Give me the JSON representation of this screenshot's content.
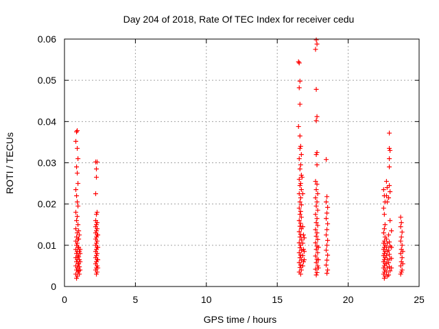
{
  "chart_data": {
    "type": "scatter",
    "title": "Day 204 of 2018, Rate Of TEC Index for receiver cedu",
    "xlabel": "GPS time / hours",
    "ylabel": "ROTI / TECUs",
    "xlim": [
      0,
      25
    ],
    "ylim": [
      0,
      0.06
    ],
    "xticks": [
      0,
      5,
      10,
      15,
      20,
      25
    ],
    "xtick_labels": [
      "0",
      "5",
      "10",
      "15",
      "20",
      "25"
    ],
    "yticks": [
      0,
      0.01,
      0.02,
      0.03,
      0.04,
      0.05,
      0.06
    ],
    "ytick_labels": [
      "0",
      "0.01",
      "0.02",
      "0.03",
      "0.04",
      "0.05",
      "0.06"
    ],
    "grid": true,
    "marker": "plus",
    "color": "#ff0000",
    "series": [
      {
        "name": "ROTI",
        "points": [
          [
            0.8,
            0.0352
          ],
          [
            0.85,
            0.0375
          ],
          [
            0.9,
            0.0378
          ],
          [
            0.9,
            0.0335
          ],
          [
            0.95,
            0.031
          ],
          [
            0.85,
            0.029
          ],
          [
            0.9,
            0.0275
          ],
          [
            0.95,
            0.025
          ],
          [
            0.8,
            0.0235
          ],
          [
            0.85,
            0.022
          ],
          [
            0.9,
            0.0205
          ],
          [
            0.95,
            0.0195
          ],
          [
            0.8,
            0.018
          ],
          [
            0.9,
            0.017
          ],
          [
            0.85,
            0.016
          ],
          [
            0.95,
            0.015
          ],
          [
            0.8,
            0.014
          ],
          [
            0.9,
            0.013
          ],
          [
            0.85,
            0.012
          ],
          [
            0.95,
            0.0115
          ],
          [
            0.8,
            0.011
          ],
          [
            0.9,
            0.0105
          ],
          [
            0.85,
            0.01
          ],
          [
            0.95,
            0.0095
          ],
          [
            0.8,
            0.009
          ],
          [
            0.9,
            0.0085
          ],
          [
            0.85,
            0.008
          ],
          [
            0.95,
            0.0075
          ],
          [
            0.8,
            0.007
          ],
          [
            0.9,
            0.0065
          ],
          [
            0.85,
            0.006
          ],
          [
            0.95,
            0.0055
          ],
          [
            0.8,
            0.005
          ],
          [
            0.9,
            0.0045
          ],
          [
            0.85,
            0.004
          ],
          [
            0.95,
            0.0035
          ],
          [
            0.8,
            0.003
          ],
          [
            0.9,
            0.0025
          ],
          [
            0.85,
            0.002
          ],
          [
            1.0,
            0.0095
          ],
          [
            1.05,
            0.0085
          ],
          [
            1.0,
            0.0072
          ],
          [
            1.05,
            0.0065
          ],
          [
            1.0,
            0.0055
          ],
          [
            1.05,
            0.0048
          ],
          [
            1.0,
            0.0038
          ],
          [
            1.05,
            0.003
          ],
          [
            1.1,
            0.009
          ],
          [
            1.1,
            0.006
          ],
          [
            1.1,
            0.004
          ],
          [
            1.1,
            0.008
          ],
          [
            1.0,
            0.0115
          ],
          [
            1.05,
            0.0125
          ],
          [
            1.0,
            0.0135
          ],
          [
            2.2,
            0.0302
          ],
          [
            2.25,
            0.0285
          ],
          [
            2.3,
            0.0302
          ],
          [
            2.25,
            0.0265
          ],
          [
            2.2,
            0.0225
          ],
          [
            2.3,
            0.018
          ],
          [
            2.25,
            0.0175
          ],
          [
            2.2,
            0.016
          ],
          [
            2.3,
            0.0155
          ],
          [
            2.25,
            0.015
          ],
          [
            2.2,
            0.0145
          ],
          [
            2.3,
            0.014
          ],
          [
            2.25,
            0.0135
          ],
          [
            2.2,
            0.013
          ],
          [
            2.3,
            0.0125
          ],
          [
            2.25,
            0.012
          ],
          [
            2.2,
            0.0115
          ],
          [
            2.3,
            0.011
          ],
          [
            2.25,
            0.0105
          ],
          [
            2.2,
            0.01
          ],
          [
            2.3,
            0.0095
          ],
          [
            2.25,
            0.009
          ],
          [
            2.2,
            0.0085
          ],
          [
            2.3,
            0.008
          ],
          [
            2.25,
            0.0075
          ],
          [
            2.2,
            0.007
          ],
          [
            2.3,
            0.0065
          ],
          [
            2.25,
            0.006
          ],
          [
            2.2,
            0.0055
          ],
          [
            2.3,
            0.005
          ],
          [
            2.25,
            0.0045
          ],
          [
            2.2,
            0.004
          ],
          [
            2.3,
            0.0035
          ],
          [
            2.25,
            0.003
          ],
          [
            2.35,
            0.0125
          ],
          [
            2.35,
            0.0095
          ],
          [
            2.35,
            0.0065
          ],
          [
            2.35,
            0.0045
          ],
          [
            16.5,
            0.0545
          ],
          [
            16.55,
            0.0542
          ],
          [
            16.6,
            0.0498
          ],
          [
            16.55,
            0.0482
          ],
          [
            16.6,
            0.0442
          ],
          [
            16.5,
            0.0388
          ],
          [
            16.6,
            0.0365
          ],
          [
            16.65,
            0.034
          ],
          [
            16.6,
            0.0335
          ],
          [
            16.7,
            0.032
          ],
          [
            16.55,
            0.031
          ],
          [
            16.65,
            0.0295
          ],
          [
            16.6,
            0.0285
          ],
          [
            16.7,
            0.027
          ],
          [
            16.55,
            0.026
          ],
          [
            16.65,
            0.025
          ],
          [
            16.6,
            0.0245
          ],
          [
            16.7,
            0.0235
          ],
          [
            16.55,
            0.0225
          ],
          [
            16.65,
            0.0215
          ],
          [
            16.6,
            0.0205
          ],
          [
            16.7,
            0.0198
          ],
          [
            16.55,
            0.019
          ],
          [
            16.65,
            0.0182
          ],
          [
            16.6,
            0.0175
          ],
          [
            16.7,
            0.0168
          ],
          [
            16.55,
            0.016
          ],
          [
            16.65,
            0.0153
          ],
          [
            16.6,
            0.0146
          ],
          [
            16.7,
            0.014
          ],
          [
            16.55,
            0.0133
          ],
          [
            16.65,
            0.0126
          ],
          [
            16.6,
            0.012
          ],
          [
            16.7,
            0.0113
          ],
          [
            16.55,
            0.0106
          ],
          [
            16.65,
            0.01
          ],
          [
            16.6,
            0.0094
          ],
          [
            16.7,
            0.0088
          ],
          [
            16.55,
            0.0082
          ],
          [
            16.65,
            0.0076
          ],
          [
            16.6,
            0.007
          ],
          [
            16.7,
            0.0064
          ],
          [
            16.55,
            0.0058
          ],
          [
            16.65,
            0.0052
          ],
          [
            16.6,
            0.0046
          ],
          [
            16.7,
            0.004
          ],
          [
            16.55,
            0.0035
          ],
          [
            16.65,
            0.003
          ],
          [
            16.8,
            0.0145
          ],
          [
            16.85,
            0.0125
          ],
          [
            16.8,
            0.0105
          ],
          [
            16.85,
            0.009
          ],
          [
            16.8,
            0.0075
          ],
          [
            16.85,
            0.006
          ],
          [
            16.8,
            0.005
          ],
          [
            16.9,
            0.0118
          ],
          [
            16.9,
            0.0085
          ],
          [
            16.9,
            0.0065
          ],
          [
            16.75,
            0.0265
          ],
          [
            16.8,
            0.0225
          ],
          [
            17.75,
            0.0598
          ],
          [
            17.8,
            0.0588
          ],
          [
            17.7,
            0.0575
          ],
          [
            17.75,
            0.0478
          ],
          [
            17.8,
            0.0412
          ],
          [
            17.75,
            0.0402
          ],
          [
            17.8,
            0.0325
          ],
          [
            17.75,
            0.032
          ],
          [
            17.8,
            0.0295
          ],
          [
            17.7,
            0.0255
          ],
          [
            17.8,
            0.0248
          ],
          [
            17.75,
            0.0235
          ],
          [
            17.85,
            0.0225
          ],
          [
            17.7,
            0.0215
          ],
          [
            17.8,
            0.0205
          ],
          [
            17.75,
            0.0195
          ],
          [
            17.85,
            0.0185
          ],
          [
            17.7,
            0.0175
          ],
          [
            17.8,
            0.0165
          ],
          [
            17.75,
            0.0155
          ],
          [
            17.85,
            0.0148
          ],
          [
            17.7,
            0.0138
          ],
          [
            17.8,
            0.013
          ],
          [
            17.75,
            0.0122
          ],
          [
            17.85,
            0.0114
          ],
          [
            17.7,
            0.0106
          ],
          [
            17.8,
            0.0098
          ],
          [
            17.75,
            0.009
          ],
          [
            17.85,
            0.0082
          ],
          [
            17.7,
            0.0074
          ],
          [
            17.8,
            0.0066
          ],
          [
            17.75,
            0.0058
          ],
          [
            17.85,
            0.005
          ],
          [
            17.7,
            0.0042
          ],
          [
            17.8,
            0.0034
          ],
          [
            17.75,
            0.0028
          ],
          [
            17.9,
            0.0095
          ],
          [
            17.9,
            0.0065
          ],
          [
            17.9,
            0.0045
          ],
          [
            18.45,
            0.0308
          ],
          [
            18.5,
            0.0218
          ],
          [
            18.45,
            0.0205
          ],
          [
            18.55,
            0.0192
          ],
          [
            18.5,
            0.0178
          ],
          [
            18.45,
            0.0165
          ],
          [
            18.55,
            0.0152
          ],
          [
            18.5,
            0.0138
          ],
          [
            18.45,
            0.0125
          ],
          [
            18.55,
            0.0112
          ],
          [
            18.5,
            0.01
          ],
          [
            18.45,
            0.0088
          ],
          [
            18.55,
            0.0076
          ],
          [
            18.5,
            0.0064
          ],
          [
            18.45,
            0.0052
          ],
          [
            18.55,
            0.004
          ],
          [
            18.5,
            0.0032
          ],
          [
            22.5,
            0.0235
          ],
          [
            22.55,
            0.022
          ],
          [
            22.6,
            0.0205
          ],
          [
            22.5,
            0.019
          ],
          [
            22.55,
            0.0175
          ],
          [
            22.6,
            0.015
          ],
          [
            22.55,
            0.014
          ],
          [
            22.5,
            0.013
          ],
          [
            22.6,
            0.012
          ],
          [
            22.55,
            0.011
          ],
          [
            22.5,
            0.0105
          ],
          [
            22.6,
            0.01
          ],
          [
            22.55,
            0.0095
          ],
          [
            22.5,
            0.009
          ],
          [
            22.6,
            0.0085
          ],
          [
            22.55,
            0.008
          ],
          [
            22.5,
            0.0075
          ],
          [
            22.6,
            0.007
          ],
          [
            22.55,
            0.0065
          ],
          [
            22.5,
            0.006
          ],
          [
            22.6,
            0.0055
          ],
          [
            22.55,
            0.005
          ],
          [
            22.5,
            0.0045
          ],
          [
            22.6,
            0.004
          ],
          [
            22.55,
            0.0035
          ],
          [
            22.5,
            0.003
          ],
          [
            22.6,
            0.0025
          ],
          [
            22.55,
            0.002
          ],
          [
            22.7,
            0.0255
          ],
          [
            22.75,
            0.024
          ],
          [
            22.7,
            0.022
          ],
          [
            22.75,
            0.0205
          ],
          [
            22.7,
            0.0115
          ],
          [
            22.75,
            0.0105
          ],
          [
            22.7,
            0.0095
          ],
          [
            22.75,
            0.0085
          ],
          [
            22.7,
            0.0075
          ],
          [
            22.75,
            0.0065
          ],
          [
            22.7,
            0.0055
          ],
          [
            22.75,
            0.0045
          ],
          [
            22.7,
            0.0035
          ],
          [
            22.75,
            0.0025
          ],
          [
            22.9,
            0.0372
          ],
          [
            22.9,
            0.0335
          ],
          [
            22.95,
            0.033
          ],
          [
            22.9,
            0.031
          ],
          [
            22.9,
            0.029
          ],
          [
            22.9,
            0.0245
          ],
          [
            22.95,
            0.023
          ],
          [
            22.85,
            0.0215
          ],
          [
            22.95,
            0.016
          ],
          [
            22.85,
            0.0125
          ],
          [
            22.9,
            0.0108
          ],
          [
            22.95,
            0.0098
          ],
          [
            22.85,
            0.0088
          ],
          [
            22.9,
            0.0078
          ],
          [
            22.95,
            0.0068
          ],
          [
            22.85,
            0.0058
          ],
          [
            22.9,
            0.0048
          ],
          [
            22.95,
            0.0038
          ],
          [
            22.85,
            0.0028
          ],
          [
            23.05,
            0.0135
          ],
          [
            23.05,
            0.0095
          ],
          [
            23.05,
            0.0068
          ],
          [
            23.05,
            0.0045
          ],
          [
            23.7,
            0.0168
          ],
          [
            23.75,
            0.0155
          ],
          [
            23.7,
            0.0145
          ],
          [
            23.8,
            0.0132
          ],
          [
            23.75,
            0.012
          ],
          [
            23.7,
            0.011
          ],
          [
            23.8,
            0.01
          ],
          [
            23.75,
            0.009
          ],
          [
            23.7,
            0.008
          ],
          [
            23.8,
            0.007
          ],
          [
            23.75,
            0.006
          ],
          [
            23.7,
            0.005
          ],
          [
            23.8,
            0.004
          ],
          [
            23.75,
            0.0035
          ],
          [
            23.7,
            0.003
          ],
          [
            23.85,
            0.0085
          ],
          [
            23.85,
            0.0055
          ]
        ]
      }
    ]
  }
}
